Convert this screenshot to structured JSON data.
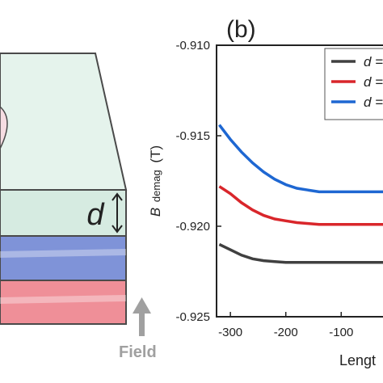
{
  "panel_left": {
    "thickness_label": "d",
    "field_label": "Field",
    "colors": {
      "top_layer": "#d6ebe1",
      "top_face": "#e5f3ec",
      "blue_layer": "#7f93d8",
      "red_layer": "#ef8f98",
      "edge": "#4a4a4a",
      "arrow": "#a0a0a0",
      "bubble": "#f6dde2"
    }
  },
  "chart_data": {
    "type": "line",
    "panel_label": "(b)",
    "ylabel_symbol": "B",
    "ylabel_sub": "demag",
    "ylabel_unit": "(T)",
    "xlabel": "Lengt",
    "xlim": [
      -325,
      25
    ],
    "ylim": [
      -0.925,
      -0.91
    ],
    "xticks": [
      -300,
      -200,
      -100
    ],
    "xtick_labels": [
      "-300",
      "-200",
      "-100"
    ],
    "yticks": [
      -0.925,
      -0.92,
      -0.915,
      -0.91
    ],
    "ytick_labels": [
      "-0.925",
      "-0.920",
      "-0.915",
      "-0.910"
    ],
    "grid": false,
    "legend_position": "top-right",
    "series": [
      {
        "name": "d =",
        "color": "#404040",
        "x": [
          -320,
          -300,
          -280,
          -260,
          -240,
          -220,
          -200,
          -180,
          -160,
          -140,
          -120,
          -100,
          -80,
          -60,
          -40,
          -20,
          0
        ],
        "y": [
          -0.921,
          -0.9213,
          -0.9216,
          -0.9218,
          -0.9219,
          -0.92195,
          -0.922,
          -0.922,
          -0.922,
          -0.922,
          -0.922,
          -0.922,
          -0.922,
          -0.922,
          -0.922,
          -0.922,
          -0.922
        ]
      },
      {
        "name": "d =",
        "color": "#d9262b",
        "x": [
          -320,
          -300,
          -280,
          -260,
          -240,
          -220,
          -200,
          -180,
          -160,
          -140,
          -120,
          -100,
          -80,
          -60,
          -40,
          -20,
          0
        ],
        "y": [
          -0.9178,
          -0.9182,
          -0.9187,
          -0.9191,
          -0.9194,
          -0.9196,
          -0.9197,
          -0.9198,
          -0.91985,
          -0.9199,
          -0.9199,
          -0.9199,
          -0.9199,
          -0.9199,
          -0.9199,
          -0.9199,
          -0.9199
        ]
      },
      {
        "name": "d =",
        "color": "#1e67d2",
        "x": [
          -320,
          -300,
          -280,
          -260,
          -240,
          -220,
          -200,
          -180,
          -160,
          -140,
          -120,
          -100,
          -80,
          -60,
          -40,
          -20,
          0
        ],
        "y": [
          -0.9144,
          -0.9152,
          -0.9159,
          -0.9165,
          -0.917,
          -0.9174,
          -0.9177,
          -0.9179,
          -0.918,
          -0.9181,
          -0.9181,
          -0.9181,
          -0.9181,
          -0.9181,
          -0.9181,
          -0.9181,
          -0.9181
        ]
      }
    ]
  }
}
